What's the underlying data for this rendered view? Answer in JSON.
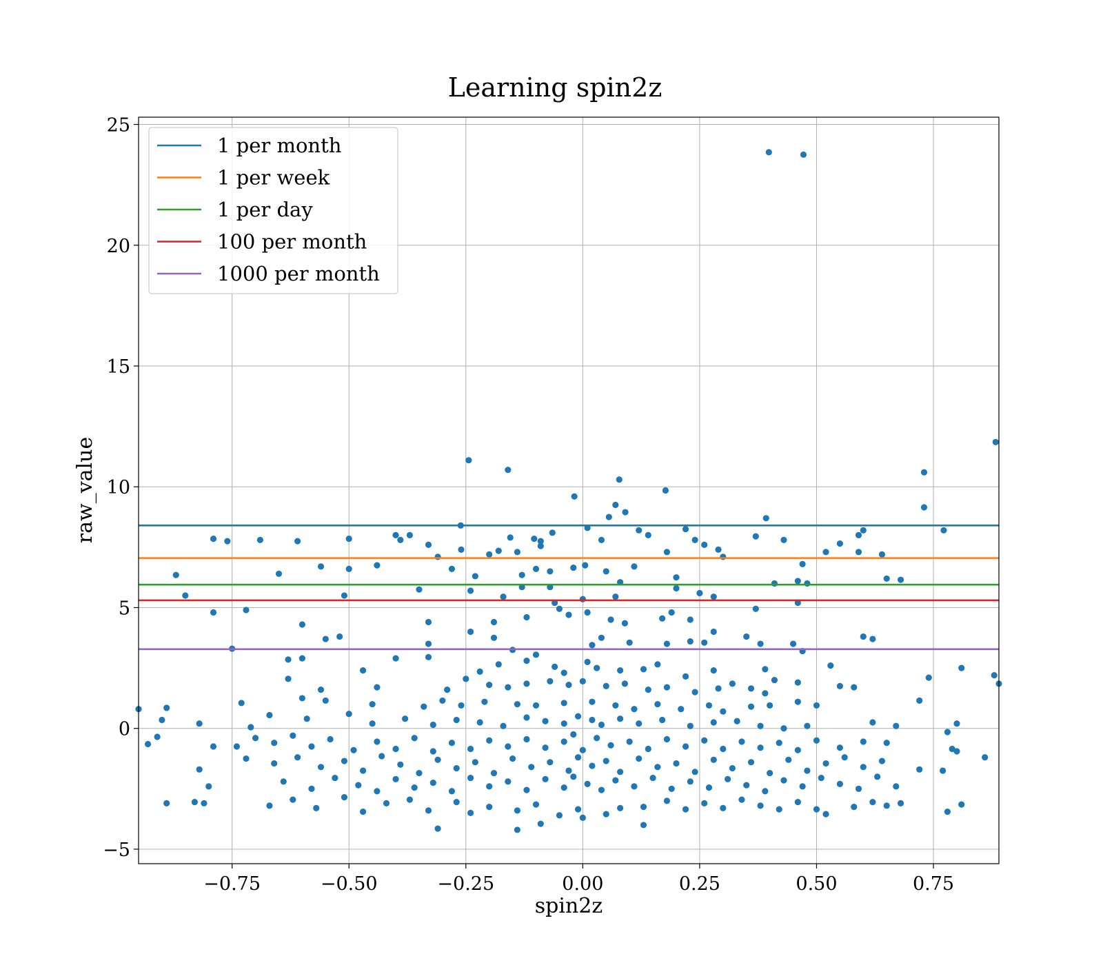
{
  "chart_data": {
    "type": "scatter",
    "title": "Learning spin2z",
    "xlabel": "spin2z",
    "ylabel": "raw_value",
    "xlim": [
      -0.95,
      0.89
    ],
    "ylim": [
      -5.6,
      25.3
    ],
    "xticks": [
      -0.75,
      -0.5,
      -0.25,
      0.0,
      0.25,
      0.5,
      0.75
    ],
    "xtick_labels": [
      "−0.75",
      "−0.50",
      "−0.25",
      "0.00",
      "0.25",
      "0.50",
      "0.75"
    ],
    "yticks": [
      -5,
      0,
      5,
      10,
      15,
      20,
      25
    ],
    "ytick_labels": [
      "−5",
      "0",
      "5",
      "10",
      "15",
      "20",
      "25"
    ],
    "grid": true,
    "legend_position": "top-left",
    "point_color": "#1f77b4",
    "hlines": [
      {
        "name": "1 per month",
        "y": 8.4,
        "color": "#1f77b4"
      },
      {
        "name": "1 per week",
        "y": 7.05,
        "color": "#ff7f0e"
      },
      {
        "name": "1 per day",
        "y": 5.95,
        "color": "#2ca02c"
      },
      {
        "name": "100 per month",
        "y": 5.3,
        "color": "#d62728"
      },
      {
        "name": "1000 per month",
        "y": 3.28,
        "color": "#9467bd"
      }
    ],
    "points": [
      [
        0.398,
        23.85
      ],
      [
        0.472,
        23.75
      ],
      [
        0.883,
        11.85
      ],
      [
        -0.244,
        11.1
      ],
      [
        -0.16,
        10.7
      ],
      [
        0.73,
        10.6
      ],
      [
        0.078,
        10.3
      ],
      [
        -0.018,
        9.6
      ],
      [
        0.177,
        9.85
      ],
      [
        0.07,
        9.25
      ],
      [
        0.091,
        8.95
      ],
      [
        0.73,
        9.15
      ],
      [
        0.392,
        8.7
      ],
      [
        0.056,
        8.75
      ],
      [
        -0.261,
        8.4
      ],
      [
        0.772,
        8.2
      ],
      [
        0.01,
        8.3
      ],
      [
        -0.104,
        7.85
      ],
      [
        -0.155,
        7.9
      ],
      [
        -0.79,
        7.85
      ],
      [
        -0.76,
        7.75
      ],
      [
        -0.69,
        7.8
      ],
      [
        -0.61,
        7.75
      ],
      [
        -0.5,
        7.85
      ],
      [
        -0.39,
        7.8
      ],
      [
        -0.4,
        8.0
      ],
      [
        -0.37,
        8.0
      ],
      [
        -0.33,
        7.6
      ],
      [
        -0.26,
        7.4
      ],
      [
        -0.2,
        7.2
      ],
      [
        -0.18,
        7.35
      ],
      [
        -0.14,
        7.3
      ],
      [
        -0.09,
        7.75
      ],
      [
        -0.09,
        7.55
      ],
      [
        -0.065,
        8.1
      ],
      [
        0.04,
        7.8
      ],
      [
        0.12,
        8.2
      ],
      [
        0.14,
        8.0
      ],
      [
        0.18,
        7.3
      ],
      [
        0.22,
        8.25
      ],
      [
        0.26,
        7.6
      ],
      [
        0.24,
        7.8
      ],
      [
        0.29,
        7.4
      ],
      [
        0.37,
        7.95
      ],
      [
        0.43,
        7.8
      ],
      [
        0.47,
        6.8
      ],
      [
        0.52,
        7.3
      ],
      [
        0.55,
        7.65
      ],
      [
        0.59,
        8.0
      ],
      [
        0.6,
        8.2
      ],
      [
        0.59,
        7.3
      ],
      [
        0.64,
        7.2
      ],
      [
        -0.87,
        6.35
      ],
      [
        -0.65,
        6.4
      ],
      [
        -0.56,
        6.7
      ],
      [
        -0.5,
        6.6
      ],
      [
        -0.44,
        6.75
      ],
      [
        -0.31,
        7.1
      ],
      [
        -0.28,
        6.6
      ],
      [
        -0.23,
        6.3
      ],
      [
        -0.13,
        6.35
      ],
      [
        -0.1,
        6.6
      ],
      [
        -0.07,
        6.5
      ],
      [
        -0.02,
        6.65
      ],
      [
        0.005,
        6.75
      ],
      [
        0.05,
        6.5
      ],
      [
        0.08,
        6.05
      ],
      [
        0.11,
        6.7
      ],
      [
        0.2,
        6.25
      ],
      [
        0.3,
        7.1
      ],
      [
        0.41,
        6.0
      ],
      [
        0.46,
        6.1
      ],
      [
        0.48,
        6.0
      ],
      [
        0.65,
        6.2
      ],
      [
        0.68,
        6.15
      ],
      [
        -0.85,
        5.5
      ],
      [
        -0.51,
        5.5
      ],
      [
        -0.35,
        5.75
      ],
      [
        -0.24,
        5.7
      ],
      [
        -0.17,
        5.45
      ],
      [
        -0.13,
        5.85
      ],
      [
        -0.07,
        5.85
      ],
      [
        -0.06,
        5.2
      ],
      [
        0.0,
        5.35
      ],
      [
        0.07,
        5.45
      ],
      [
        0.2,
        5.8
      ],
      [
        0.25,
        5.6
      ],
      [
        0.28,
        5.45
      ],
      [
        0.46,
        5.2
      ],
      [
        -0.79,
        4.8
      ],
      [
        -0.72,
        4.9
      ],
      [
        -0.6,
        4.3
      ],
      [
        -0.33,
        4.4
      ],
      [
        -0.24,
        4.0
      ],
      [
        -0.19,
        4.4
      ],
      [
        -0.12,
        4.6
      ],
      [
        -0.05,
        4.95
      ],
      [
        -0.03,
        4.7
      ],
      [
        0.01,
        4.8
      ],
      [
        0.06,
        4.5
      ],
      [
        0.09,
        4.35
      ],
      [
        0.17,
        4.55
      ],
      [
        0.19,
        4.8
      ],
      [
        0.23,
        4.5
      ],
      [
        0.28,
        4.0
      ],
      [
        0.37,
        4.95
      ],
      [
        0.45,
        3.5
      ],
      [
        0.6,
        3.8
      ],
      [
        0.62,
        3.7
      ],
      [
        -0.75,
        3.3
      ],
      [
        -0.55,
        3.7
      ],
      [
        -0.52,
        3.8
      ],
      [
        -0.33,
        3.5
      ],
      [
        -0.19,
        3.75
      ],
      [
        -0.15,
        3.25
      ],
      [
        -0.1,
        3.05
      ],
      [
        0.02,
        3.45
      ],
      [
        0.04,
        3.75
      ],
      [
        0.1,
        3.55
      ],
      [
        0.18,
        3.5
      ],
      [
        0.23,
        3.6
      ],
      [
        0.26,
        3.55
      ],
      [
        0.35,
        3.8
      ],
      [
        0.38,
        3.5
      ],
      [
        0.47,
        3.2
      ],
      [
        -0.63,
        2.85
      ],
      [
        -0.6,
        2.9
      ],
      [
        -0.4,
        2.9
      ],
      [
        -0.33,
        2.95
      ],
      [
        -0.25,
        2.05
      ],
      [
        -0.22,
        2.35
      ],
      [
        -0.18,
        2.65
      ],
      [
        -0.12,
        2.8
      ],
      [
        -0.06,
        2.55
      ],
      [
        -0.04,
        2.3
      ],
      [
        0.01,
        2.75
      ],
      [
        0.03,
        2.5
      ],
      [
        0.08,
        2.4
      ],
      [
        0.13,
        2.45
      ],
      [
        0.16,
        2.65
      ],
      [
        0.22,
        2.15
      ],
      [
        0.28,
        2.4
      ],
      [
        0.32,
        1.85
      ],
      [
        0.39,
        2.45
      ],
      [
        0.41,
        2.0
      ],
      [
        0.53,
        2.6
      ],
      [
        0.74,
        2.1
      ],
      [
        0.81,
        2.5
      ],
      [
        0.88,
        2.2
      ],
      [
        0.89,
        1.85
      ],
      [
        -0.63,
        2.05
      ],
      [
        -0.47,
        2.4
      ],
      [
        -0.56,
        1.6
      ],
      [
        -0.44,
        1.7
      ],
      [
        -0.29,
        1.6
      ],
      [
        -0.2,
        1.8
      ],
      [
        -0.16,
        1.7
      ],
      [
        -0.12,
        1.85
      ],
      [
        -0.07,
        1.95
      ],
      [
        -0.03,
        1.8
      ],
      [
        0.0,
        1.95
      ],
      [
        0.05,
        1.75
      ],
      [
        0.09,
        1.85
      ],
      [
        0.14,
        1.6
      ],
      [
        0.18,
        1.7
      ],
      [
        0.24,
        1.5
      ],
      [
        0.29,
        1.65
      ],
      [
        0.36,
        1.65
      ],
      [
        0.39,
        1.45
      ],
      [
        0.46,
        1.9
      ],
      [
        0.55,
        1.75
      ],
      [
        0.58,
        1.7
      ],
      [
        0.72,
        1.15
      ],
      [
        -0.95,
        0.8
      ],
      [
        -0.89,
        0.85
      ],
      [
        -0.73,
        1.05
      ],
      [
        -0.6,
        1.25
      ],
      [
        -0.55,
        1.15
      ],
      [
        -0.45,
        1.0
      ],
      [
        -0.34,
        0.9
      ],
      [
        -0.3,
        1.15
      ],
      [
        -0.26,
        0.95
      ],
      [
        -0.21,
        1.1
      ],
      [
        -0.14,
        1.0
      ],
      [
        -0.1,
        0.95
      ],
      [
        -0.04,
        1.05
      ],
      [
        0.02,
        1.1
      ],
      [
        0.07,
        0.95
      ],
      [
        0.11,
        0.8
      ],
      [
        0.16,
        1.0
      ],
      [
        0.21,
        0.8
      ],
      [
        0.27,
        0.95
      ],
      [
        0.3,
        0.7
      ],
      [
        0.36,
        0.9
      ],
      [
        0.4,
        0.95
      ],
      [
        0.46,
        1.1
      ],
      [
        0.5,
        0.95
      ],
      [
        -0.9,
        0.35
      ],
      [
        -0.82,
        0.2
      ],
      [
        -0.71,
        0.05
      ],
      [
        -0.67,
        0.55
      ],
      [
        -0.59,
        0.4
      ],
      [
        -0.5,
        0.6
      ],
      [
        -0.45,
        0.2
      ],
      [
        -0.38,
        0.4
      ],
      [
        -0.32,
        0.15
      ],
      [
        -0.27,
        0.35
      ],
      [
        -0.22,
        0.25
      ],
      [
        -0.17,
        0.1
      ],
      [
        -0.12,
        0.45
      ],
      [
        -0.08,
        0.3
      ],
      [
        -0.04,
        0.2
      ],
      [
        -0.01,
        0.5
      ],
      [
        0.02,
        0.35
      ],
      [
        0.04,
        0.15
      ],
      [
        0.08,
        0.4
      ],
      [
        0.12,
        0.2
      ],
      [
        0.17,
        0.35
      ],
      [
        0.23,
        0.1
      ],
      [
        0.28,
        0.25
      ],
      [
        0.33,
        0.3
      ],
      [
        0.38,
        0.1
      ],
      [
        0.43,
        0.0
      ],
      [
        0.48,
        0.1
      ],
      [
        0.62,
        0.25
      ],
      [
        0.67,
        0.1
      ],
      [
        0.8,
        0.2
      ],
      [
        -0.93,
        -0.65
      ],
      [
        -0.91,
        -0.35
      ],
      [
        -0.79,
        -0.75
      ],
      [
        -0.74,
        -0.75
      ],
      [
        -0.7,
        -0.4
      ],
      [
        -0.66,
        -0.6
      ],
      [
        -0.62,
        -0.3
      ],
      [
        -0.58,
        -0.75
      ],
      [
        -0.54,
        -0.45
      ],
      [
        -0.49,
        -0.9
      ],
      [
        -0.44,
        -0.55
      ],
      [
        -0.4,
        -0.85
      ],
      [
        -0.36,
        -0.4
      ],
      [
        -0.32,
        -0.95
      ],
      [
        -0.28,
        -0.6
      ],
      [
        -0.24,
        -0.85
      ],
      [
        -0.2,
        -0.5
      ],
      [
        -0.16,
        -0.75
      ],
      [
        -0.12,
        -0.45
      ],
      [
        -0.08,
        -0.8
      ],
      [
        -0.04,
        -0.55
      ],
      [
        -0.02,
        -0.25
      ],
      [
        0.0,
        -0.9
      ],
      [
        0.03,
        -0.4
      ],
      [
        0.06,
        -0.7
      ],
      [
        0.1,
        -0.55
      ],
      [
        0.14,
        -0.85
      ],
      [
        0.18,
        -0.45
      ],
      [
        0.22,
        -0.75
      ],
      [
        0.26,
        -0.5
      ],
      [
        0.3,
        -0.85
      ],
      [
        0.34,
        -0.55
      ],
      [
        0.38,
        -0.8
      ],
      [
        0.42,
        -0.6
      ],
      [
        0.46,
        -0.9
      ],
      [
        0.5,
        -0.5
      ],
      [
        0.55,
        -0.8
      ],
      [
        0.6,
        -0.55
      ],
      [
        0.65,
        -0.6
      ],
      [
        0.78,
        -0.15
      ],
      [
        0.79,
        -0.85
      ],
      [
        0.8,
        -0.95
      ],
      [
        0.86,
        -1.2
      ],
      [
        -0.82,
        -1.7
      ],
      [
        -0.72,
        -1.25
      ],
      [
        -0.66,
        -1.45
      ],
      [
        -0.61,
        -1.2
      ],
      [
        -0.56,
        -1.6
      ],
      [
        -0.51,
        -1.35
      ],
      [
        -0.47,
        -1.75
      ],
      [
        -0.43,
        -1.15
      ],
      [
        -0.39,
        -1.5
      ],
      [
        -0.35,
        -1.85
      ],
      [
        -0.31,
        -1.3
      ],
      [
        -0.27,
        -1.65
      ],
      [
        -0.23,
        -1.4
      ],
      [
        -0.19,
        -1.85
      ],
      [
        -0.15,
        -1.25
      ],
      [
        -0.11,
        -1.6
      ],
      [
        -0.07,
        -1.4
      ],
      [
        -0.03,
        -1.75
      ],
      [
        -0.01,
        -1.2
      ],
      [
        0.02,
        -1.55
      ],
      [
        0.05,
        -1.35
      ],
      [
        0.08,
        -1.8
      ],
      [
        0.12,
        -1.25
      ],
      [
        0.16,
        -1.6
      ],
      [
        0.2,
        -1.45
      ],
      [
        0.24,
        -1.8
      ],
      [
        0.28,
        -1.3
      ],
      [
        0.32,
        -1.65
      ],
      [
        0.36,
        -1.4
      ],
      [
        0.4,
        -1.85
      ],
      [
        0.44,
        -1.3
      ],
      [
        0.48,
        -1.75
      ],
      [
        0.52,
        -1.45
      ],
      [
        0.56,
        -1.2
      ],
      [
        0.6,
        -1.6
      ],
      [
        0.64,
        -1.35
      ],
      [
        0.72,
        -1.7
      ],
      [
        0.77,
        -1.75
      ],
      [
        -0.8,
        -2.4
      ],
      [
        -0.64,
        -2.2
      ],
      [
        -0.58,
        -2.5
      ],
      [
        -0.53,
        -2.05
      ],
      [
        -0.48,
        -2.35
      ],
      [
        -0.44,
        -2.6
      ],
      [
        -0.4,
        -2.1
      ],
      [
        -0.36,
        -2.45
      ],
      [
        -0.32,
        -2.25
      ],
      [
        -0.28,
        -2.6
      ],
      [
        -0.24,
        -2.05
      ],
      [
        -0.2,
        -2.4
      ],
      [
        -0.16,
        -2.2
      ],
      [
        -0.12,
        -2.55
      ],
      [
        -0.08,
        -2.1
      ],
      [
        -0.04,
        -2.45
      ],
      [
        -0.02,
        -2.0
      ],
      [
        0.01,
        -2.3
      ],
      [
        0.04,
        -2.55
      ],
      [
        0.07,
        -2.15
      ],
      [
        0.11,
        -2.4
      ],
      [
        0.15,
        -2.05
      ],
      [
        0.19,
        -2.5
      ],
      [
        0.23,
        -2.2
      ],
      [
        0.27,
        -2.45
      ],
      [
        0.31,
        -2.1
      ],
      [
        0.35,
        -2.35
      ],
      [
        0.39,
        -2.6
      ],
      [
        0.43,
        -2.15
      ],
      [
        0.47,
        -2.4
      ],
      [
        0.51,
        -2.05
      ],
      [
        0.55,
        -2.3
      ],
      [
        0.59,
        -2.5
      ],
      [
        0.63,
        -2.0
      ],
      [
        0.67,
        -2.4
      ],
      [
        -0.89,
        -3.1
      ],
      [
        -0.83,
        -3.05
      ],
      [
        -0.81,
        -3.1
      ],
      [
        -0.67,
        -3.2
      ],
      [
        -0.62,
        -2.95
      ],
      [
        -0.57,
        -3.3
      ],
      [
        -0.51,
        -2.85
      ],
      [
        -0.47,
        -3.45
      ],
      [
        -0.42,
        -3.1
      ],
      [
        -0.37,
        -2.95
      ],
      [
        -0.33,
        -3.4
      ],
      [
        -0.31,
        -4.15
      ],
      [
        -0.27,
        -3.05
      ],
      [
        -0.24,
        -3.5
      ],
      [
        -0.2,
        -3.25
      ],
      [
        -0.14,
        -4.2
      ],
      [
        -0.14,
        -3.4
      ],
      [
        -0.1,
        -3.15
      ],
      [
        -0.09,
        -3.95
      ],
      [
        -0.05,
        -3.6
      ],
      [
        -0.01,
        -3.35
      ],
      [
        0.0,
        -3.7
      ],
      [
        0.05,
        -3.55
      ],
      [
        0.08,
        -3.3
      ],
      [
        0.13,
        -4.0
      ],
      [
        0.13,
        -3.25
      ],
      [
        0.18,
        -3.0
      ],
      [
        0.22,
        -3.35
      ],
      [
        0.26,
        -3.1
      ],
      [
        0.3,
        -3.3
      ],
      [
        0.34,
        -2.95
      ],
      [
        0.38,
        -3.2
      ],
      [
        0.42,
        -3.35
      ],
      [
        0.46,
        -3.05
      ],
      [
        0.5,
        -3.35
      ],
      [
        0.52,
        -3.55
      ],
      [
        0.58,
        -3.25
      ],
      [
        0.62,
        -3.05
      ],
      [
        0.65,
        -3.2
      ],
      [
        0.68,
        -3.1
      ],
      [
        0.78,
        -3.45
      ],
      [
        0.81,
        -3.15
      ]
    ]
  }
}
